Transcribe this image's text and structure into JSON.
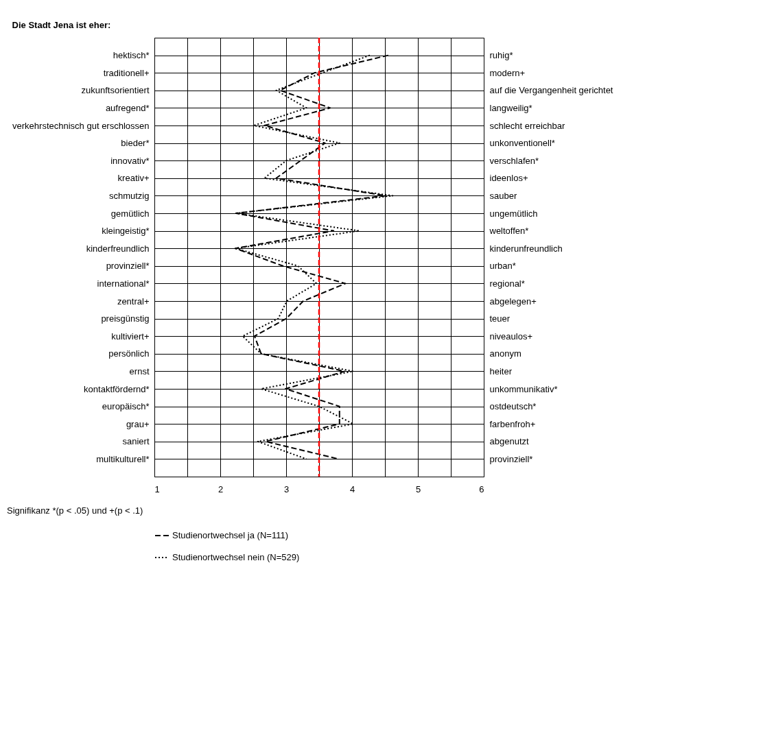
{
  "chart_data": {
    "type": "line",
    "orientation": "horizontal",
    "title": "Die Stadt Jena ist eher:",
    "categories": [
      "hektisch*",
      "traditionell+",
      "zukunftsorientiert",
      "aufregend*",
      "verkehrstechnisch gut erschlossen",
      "bieder*",
      "innovativ*",
      "kreativ+",
      "schmutzig",
      "gemütlich",
      "kleingeistig*",
      "kinderfreundlich",
      "provinziell*",
      "international*",
      "zentral+",
      "preisgünstig",
      "kultiviert+",
      "persönlich",
      "ernst",
      "kontaktfördernd*",
      "europäisch*",
      "grau+",
      "saniert",
      "multikulturell*"
    ],
    "y2_categories": [
      "ruhig*",
      "modern+",
      "auf die Vergangenheit gerichtet",
      "langweilig*",
      "schlecht erreichbar",
      "unkonventionell*",
      "verschlafen*",
      "ideenlos+",
      "sauber",
      "ungemütlich",
      "weltoffen*",
      "kinderunfreundlich",
      "urban*",
      "regional*",
      "abgelegen+",
      "teuer",
      "niveaulos+",
      "anonym",
      "heiter",
      "unkommunikativ*",
      "ostdeutsch*",
      "farbenfroh+",
      "abgenutzt",
      "provinziell*"
    ],
    "series": [
      {
        "name": "Studienortwechsel ja (N=111)",
        "color": "#000000",
        "line_style": "dashed",
        "values": [
          4.55,
          3.43,
          2.91,
          3.67,
          2.67,
          3.59,
          3.22,
          2.85,
          4.51,
          2.24,
          3.72,
          2.23,
          2.95,
          3.9,
          3.26,
          3.0,
          2.52,
          2.62,
          3.89,
          2.99,
          3.81,
          3.81,
          2.69,
          3.8
        ]
      },
      {
        "name": "Studienortwechsel nein (N=529)",
        "color": "#000000",
        "line_style": "dotted",
        "values": [
          4.27,
          3.55,
          2.85,
          3.31,
          2.51,
          3.81,
          3.0,
          2.67,
          4.62,
          2.24,
          4.11,
          2.23,
          3.18,
          3.46,
          3.01,
          2.88,
          2.34,
          2.62,
          4.02,
          2.62,
          3.5,
          4.02,
          2.57,
          3.31
        ]
      }
    ],
    "xlim": [
      1,
      6
    ],
    "xticks": [
      1,
      {
        "value": 1.5,
        "label": null
      },
      2,
      {
        "value": 2.5,
        "label": null
      },
      3,
      {
        "value": 3.5,
        "label": null
      },
      4,
      {
        "value": 4.5,
        "label": null
      },
      5,
      {
        "value": 5.5,
        "label": null
      },
      6
    ],
    "ref_lines": [
      {
        "axis": "x",
        "value": 3.5,
        "color": "#ff0000",
        "line_style": "dashed"
      }
    ],
    "grid": true,
    "legend": "bottom",
    "marker": "none",
    "annotations": [
      "Signifikanz *(p < .05) und +(p < .1)"
    ]
  }
}
